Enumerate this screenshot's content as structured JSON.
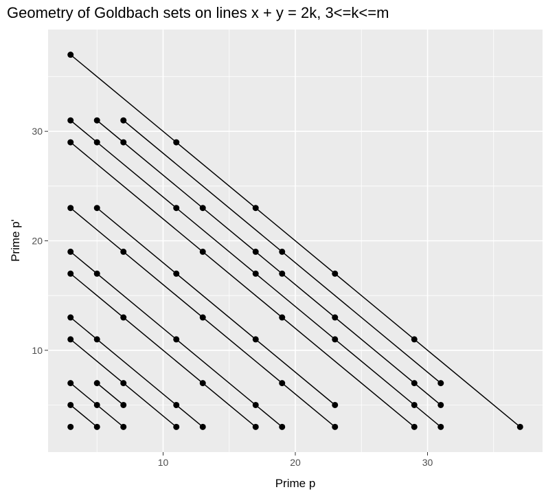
{
  "chart_data": {
    "type": "scatter",
    "title": "Geometry of Goldbach sets on lines x + y = 2k, 3<=k<=m",
    "xlabel": "Prime p",
    "ylabel": "Prime p'",
    "xlim": [
      1.3,
      38.7
    ],
    "ylim": [
      0.7,
      39.3
    ],
    "xticks": [
      10,
      20,
      30
    ],
    "yticks": [
      10,
      20,
      30
    ],
    "x_minor": [
      5,
      15,
      25,
      35
    ],
    "y_minor": [
      5,
      15,
      25,
      35
    ],
    "grid": true,
    "panel_color": "#ebebeb",
    "point_color": "#000000",
    "line_color": "#000000",
    "series": [
      {
        "points": [
          [
            3,
            3
          ]
        ]
      },
      {
        "points": [
          [
            3,
            5
          ],
          [
            5,
            3
          ]
        ]
      },
      {
        "points": [
          [
            3,
            7
          ],
          [
            5,
            5
          ],
          [
            7,
            3
          ]
        ]
      },
      {
        "points": [
          [
            5,
            7
          ],
          [
            7,
            5
          ]
        ]
      },
      {
        "points": [
          [
            3,
            11
          ],
          [
            5,
            9
          ],
          [
            7,
            7
          ],
          [
            9,
            5
          ],
          [
            11,
            3
          ]
        ]
      },
      {
        "points": [
          [
            3,
            13
          ],
          [
            5,
            11
          ],
          [
            7,
            9
          ],
          [
            9,
            7
          ],
          [
            11,
            5
          ],
          [
            13,
            3
          ]
        ]
      },
      {
        "points": [
          [
            3,
            17
          ],
          [
            5,
            15
          ],
          [
            7,
            13
          ],
          [
            9,
            11
          ],
          [
            11,
            9
          ],
          [
            13,
            7
          ],
          [
            15,
            5
          ],
          [
            17,
            3
          ]
        ]
      },
      {
        "points": [
          [
            3,
            19
          ],
          [
            5,
            17
          ],
          [
            7,
            15
          ],
          [
            9,
            13
          ],
          [
            11,
            11
          ],
          [
            13,
            9
          ],
          [
            15,
            7
          ],
          [
            17,
            5
          ],
          [
            19,
            3
          ]
        ]
      },
      {
        "points": [
          [
            3,
            23
          ],
          [
            5,
            21
          ],
          [
            7,
            19
          ],
          [
            9,
            17
          ],
          [
            11,
            15
          ],
          [
            13,
            13
          ],
          [
            15,
            11
          ],
          [
            17,
            9
          ],
          [
            19,
            7
          ],
          [
            21,
            5
          ],
          [
            23,
            3
          ]
        ]
      },
      {
        "points": [
          [
            5,
            23
          ],
          [
            7,
            21
          ],
          [
            9,
            19
          ],
          [
            11,
            17
          ],
          [
            13,
            15
          ],
          [
            15,
            13
          ],
          [
            17,
            11
          ],
          [
            19,
            9
          ],
          [
            21,
            7
          ],
          [
            23,
            5
          ]
        ]
      },
      {
        "points": [
          [
            3,
            29
          ],
          [
            5,
            27
          ],
          [
            7,
            25
          ],
          [
            9,
            23
          ],
          [
            11,
            21
          ],
          [
            13,
            19
          ],
          [
            15,
            17
          ],
          [
            17,
            15
          ],
          [
            19,
            13
          ],
          [
            21,
            11
          ],
          [
            23,
            9
          ],
          [
            25,
            7
          ],
          [
            27,
            5
          ],
          [
            29,
            3
          ]
        ]
      },
      {
        "points": [
          [
            3,
            31
          ],
          [
            5,
            29
          ],
          [
            7,
            27
          ],
          [
            9,
            25
          ],
          [
            11,
            23
          ],
          [
            13,
            21
          ],
          [
            15,
            19
          ],
          [
            17,
            17
          ],
          [
            19,
            15
          ],
          [
            21,
            13
          ],
          [
            23,
            11
          ],
          [
            25,
            9
          ],
          [
            27,
            7
          ],
          [
            29,
            5
          ],
          [
            31,
            3
          ]
        ]
      },
      {
        "points": [
          [
            5,
            31
          ],
          [
            7,
            29
          ],
          [
            9,
            27
          ],
          [
            11,
            25
          ],
          [
            13,
            23
          ],
          [
            15,
            21
          ],
          [
            17,
            19
          ],
          [
            19,
            17
          ],
          [
            21,
            15
          ],
          [
            23,
            13
          ],
          [
            25,
            11
          ],
          [
            27,
            9
          ],
          [
            29,
            7
          ],
          [
            31,
            5
          ]
        ]
      },
      {
        "points": [
          [
            7,
            31
          ],
          [
            9,
            29
          ],
          [
            11,
            27
          ],
          [
            13,
            25
          ],
          [
            15,
            23
          ],
          [
            17,
            21
          ],
          [
            19,
            19
          ],
          [
            21,
            17
          ],
          [
            23,
            15
          ],
          [
            25,
            13
          ],
          [
            27,
            11
          ],
          [
            29,
            9
          ],
          [
            31,
            7
          ]
        ]
      },
      {
        "points": [
          [
            3,
            37
          ],
          [
            5,
            35
          ],
          [
            7,
            33
          ],
          [
            9,
            31
          ],
          [
            11,
            29
          ],
          [
            13,
            27
          ],
          [
            15,
            25
          ],
          [
            17,
            23
          ],
          [
            19,
            21
          ],
          [
            21,
            19
          ],
          [
            23,
            17
          ],
          [
            25,
            15
          ],
          [
            27,
            13
          ],
          [
            29,
            11
          ],
          [
            31,
            9
          ],
          [
            33,
            7
          ],
          [
            35,
            5
          ],
          [
            37,
            3
          ]
        ]
      }
    ],
    "primes": [
      3,
      5,
      7,
      11,
      13,
      17,
      19,
      23,
      29,
      31,
      37
    ]
  }
}
